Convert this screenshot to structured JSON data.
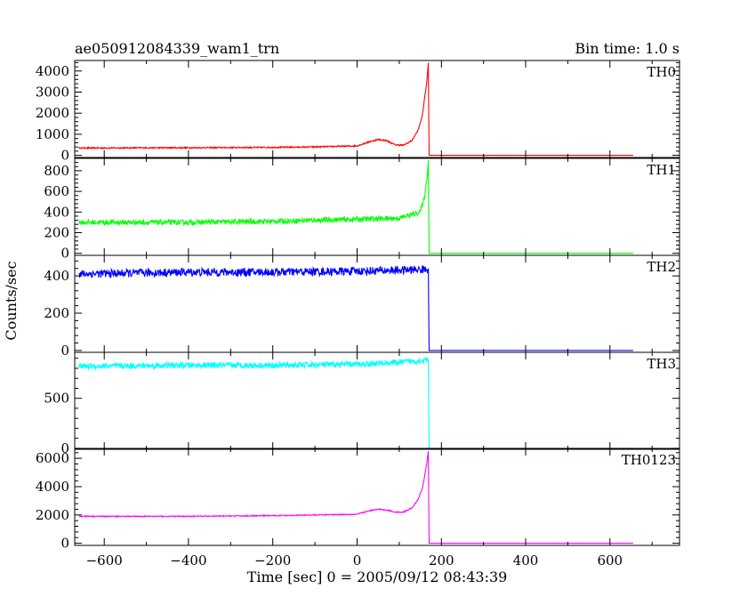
{
  "header": {
    "title": "ae050912084339_wam1_trn",
    "bin_time": "Bin time: 1.0 s"
  },
  "xlabel": "Time [sec] 0 = 2005/09/12 08:43:39",
  "ylabel": "Counts/sec",
  "chart_data": {
    "type": "line",
    "xlim": [
      -670,
      765
    ],
    "x_ticks": [
      -600,
      -400,
      -200,
      0,
      200,
      400,
      600
    ],
    "grid": false,
    "panels": [
      {
        "name": "TH0",
        "color": "#ff0000",
        "ylim": [
          -100,
          4500
        ],
        "y_ticks": [
          0,
          1000,
          2000,
          3000,
          4000
        ],
        "series": {
          "x": [
            -660,
            -600,
            -500,
            -400,
            -300,
            -200,
            -100,
            0,
            30,
            50,
            70,
            90,
            110,
            130,
            145,
            155,
            160,
            165,
            169,
            171,
            175,
            200,
            300,
            400,
            500,
            600,
            655
          ],
          "y": [
            350,
            350,
            360,
            360,
            370,
            380,
            400,
            450,
            650,
            750,
            700,
            500,
            480,
            700,
            1200,
            1900,
            2700,
            3400,
            4400,
            0,
            0,
            0,
            0,
            0,
            0,
            0,
            0
          ]
        },
        "noise": 30
      },
      {
        "name": "TH1",
        "color": "#00ff00",
        "ylim": [
          -20,
          920
        ],
        "y_ticks": [
          0,
          200,
          400,
          600,
          800
        ],
        "series": {
          "x": [
            -660,
            -400,
            -200,
            0,
            100,
            150,
            160,
            165,
            169,
            171,
            200,
            655
          ],
          "y": [
            300,
            300,
            310,
            330,
            340,
            400,
            550,
            700,
            900,
            0,
            0,
            0
          ]
        },
        "noise": 25
      },
      {
        "name": "TH2",
        "color": "#0000ff",
        "ylim": [
          -10,
          510
        ],
        "y_ticks": [
          0,
          200,
          400
        ],
        "series": {
          "x": [
            -660,
            -400,
            -200,
            0,
            100,
            160,
            169,
            171,
            200,
            655
          ],
          "y": [
            410,
            420,
            420,
            425,
            430,
            435,
            440,
            0,
            0,
            0
          ]
        },
        "noise": 22
      },
      {
        "name": "TH3",
        "color": "#00ffff",
        "ylim": [
          -10,
          960
        ],
        "y_ticks": [
          0,
          500
        ],
        "series": {
          "x": [
            -660,
            -400,
            -200,
            0,
            100,
            160,
            169,
            171,
            200,
            655
          ],
          "y": [
            820,
            830,
            830,
            840,
            860,
            880,
            880,
            0,
            0,
            0
          ]
        },
        "noise": 30
      },
      {
        "name": "TH0123",
        "color": "#ff00ff",
        "ylim": [
          -150,
          6700
        ],
        "y_ticks": [
          0,
          2000,
          4000,
          6000
        ],
        "y_ticks_unlabeled": [
          1000,
          3000,
          5000
        ],
        "series": {
          "x": [
            -660,
            -400,
            -200,
            0,
            30,
            50,
            70,
            90,
            110,
            130,
            145,
            155,
            160,
            165,
            169,
            171,
            200,
            655
          ],
          "y": [
            1900,
            1900,
            1950,
            2050,
            2300,
            2400,
            2350,
            2200,
            2200,
            2500,
            3100,
            3900,
            4700,
            5600,
            6500,
            0,
            0,
            0
          ]
        },
        "noise": 35
      }
    ]
  }
}
